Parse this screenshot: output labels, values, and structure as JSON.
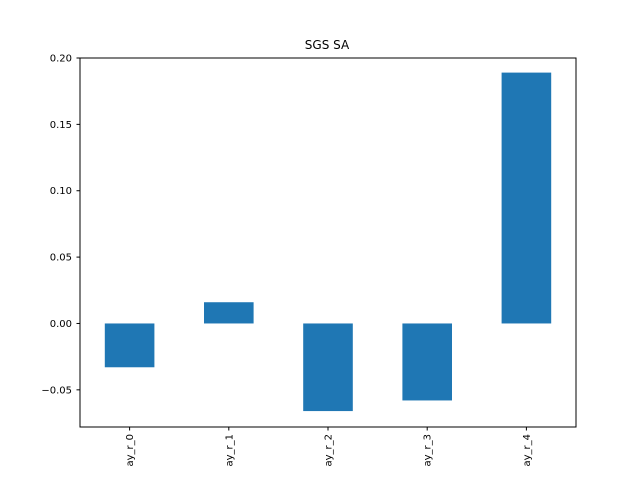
{
  "chart_data": {
    "type": "bar",
    "title": "SGS SA",
    "xlabel": "",
    "ylabel": "",
    "categories": [
      "ay_r_0",
      "ay_r_1",
      "ay_r_2",
      "ay_r_3",
      "ay_r_4"
    ],
    "values": [
      -0.033,
      0.016,
      -0.066,
      -0.058,
      0.189
    ],
    "ylim": [
      -0.078,
      0.2
    ],
    "yticks": [
      {
        "value": -0.05,
        "label": "−0.05"
      },
      {
        "value": 0.0,
        "label": "0.00"
      },
      {
        "value": 0.05,
        "label": "0.05"
      },
      {
        "value": 0.1,
        "label": "0.10"
      },
      {
        "value": 0.15,
        "label": "0.15"
      },
      {
        "value": 0.2,
        "label": "0.20"
      }
    ],
    "bar_color": "#1f77b4",
    "grid": false,
    "legend": "none"
  }
}
